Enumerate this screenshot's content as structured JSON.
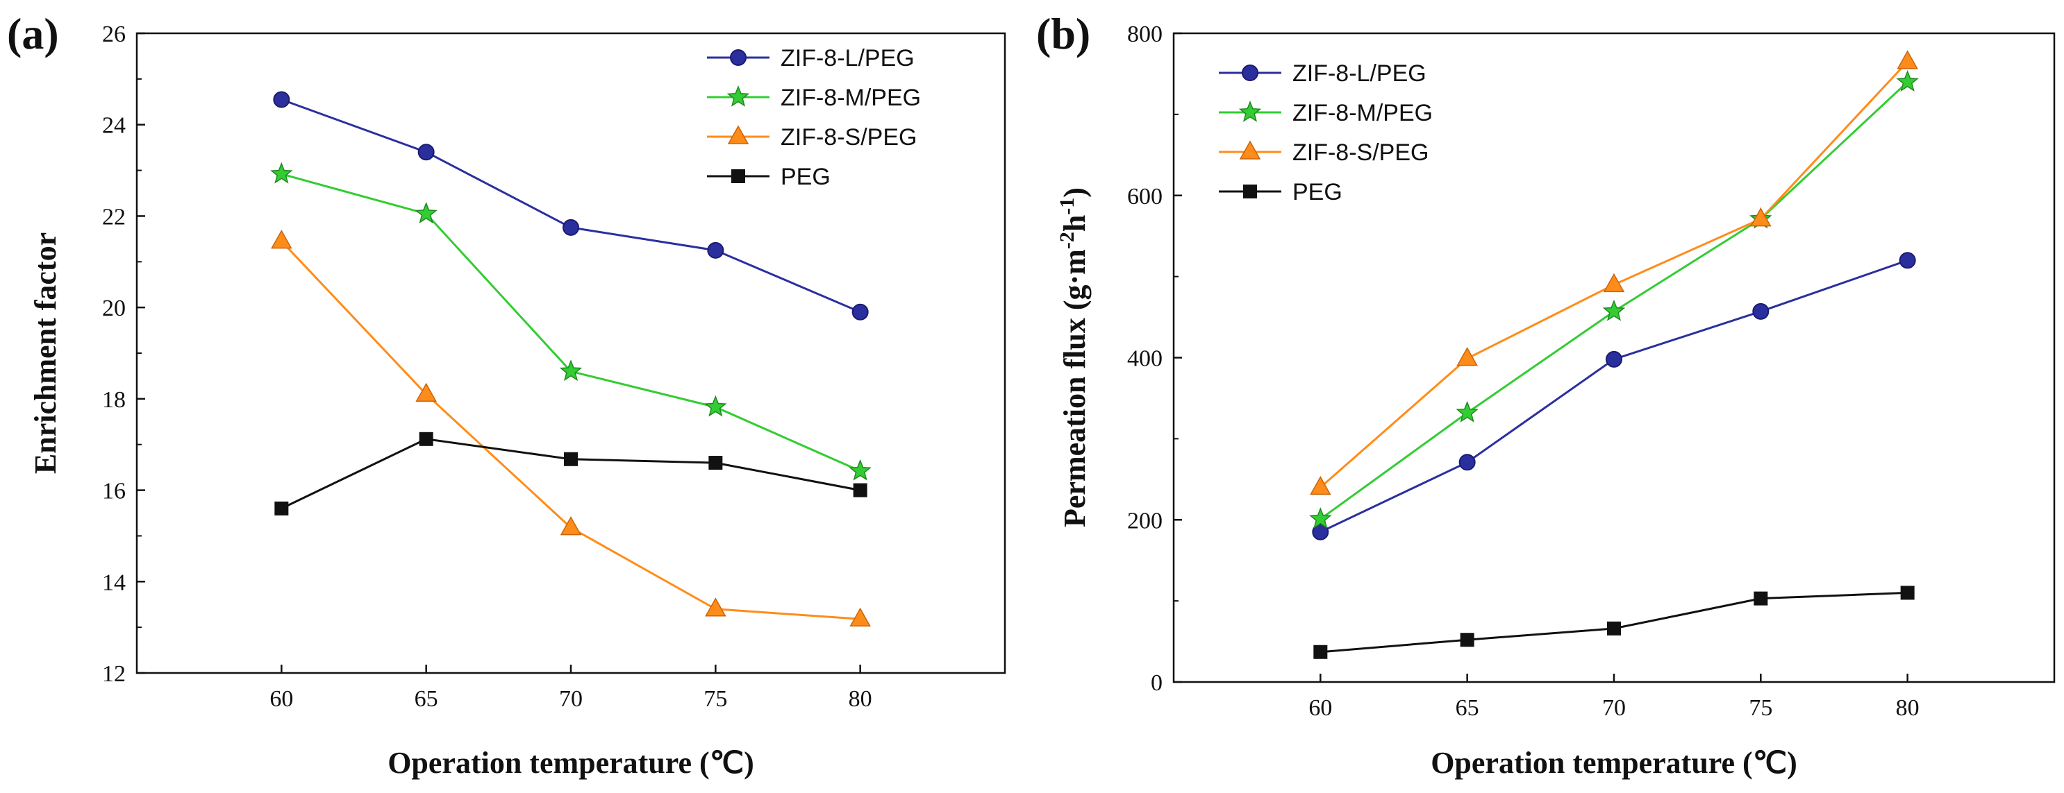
{
  "chart_data": [
    {
      "type": "line",
      "panel_label": "(a)",
      "xlabel": "Operation temperature (℃)",
      "ylabel": "Enrichment factor",
      "x": [
        60,
        65,
        70,
        75,
        80
      ],
      "xlim": [
        55,
        85
      ],
      "ylim": [
        12,
        26
      ],
      "xticks": [
        60,
        65,
        70,
        75,
        80
      ],
      "yticks": [
        12,
        14,
        16,
        18,
        20,
        22,
        24,
        26
      ],
      "legend_position": "top-right",
      "series": [
        {
          "name": "ZIF-8-L/PEG",
          "color": "#2b2f9e",
          "marker": "circle",
          "values": [
            24.55,
            23.4,
            21.75,
            21.25,
            19.9
          ]
        },
        {
          "name": "ZIF-8-M/PEG",
          "color": "#33cc33",
          "marker": "star",
          "values": [
            22.92,
            22.05,
            18.6,
            17.82,
            16.42
          ]
        },
        {
          "name": "ZIF-8-S/PEG",
          "color": "#ff8c1a",
          "marker": "triangle",
          "values": [
            21.45,
            18.1,
            15.18,
            13.4,
            13.18
          ]
        },
        {
          "name": "PEG",
          "color": "#111111",
          "marker": "square",
          "values": [
            15.6,
            17.12,
            16.68,
            16.6,
            16.0
          ]
        }
      ]
    },
    {
      "type": "line",
      "panel_label": "(b)",
      "xlabel": "Operation temperature (℃)",
      "ylabel": "Permeation flux (g·m⁻²h⁻¹)",
      "ylabel_parts": {
        "main": "Permeation flux (g·m",
        "sup1": "-2",
        "mid": "h",
        "sup2": "-1",
        "end": ")"
      },
      "x": [
        60,
        65,
        70,
        75,
        80
      ],
      "xlim": [
        55,
        85
      ],
      "ylim": [
        0,
        800
      ],
      "xticks": [
        60,
        65,
        70,
        75,
        80
      ],
      "yticks": [
        0,
        200,
        400,
        600,
        800
      ],
      "legend_position": "top-left",
      "series": [
        {
          "name": "ZIF-8-L/PEG",
          "color": "#2b2f9e",
          "marker": "circle",
          "values": [
            185,
            271,
            398,
            457,
            520
          ]
        },
        {
          "name": "ZIF-8-M/PEG",
          "color": "#33cc33",
          "marker": "star",
          "values": [
            201,
            332,
            457,
            571,
            740
          ]
        },
        {
          "name": "ZIF-8-S/PEG",
          "color": "#ff8c1a",
          "marker": "triangle",
          "values": [
            240,
            399,
            490,
            571,
            765
          ]
        },
        {
          "name": "PEG",
          "color": "#111111",
          "marker": "square",
          "values": [
            37,
            52,
            66,
            103,
            110
          ]
        }
      ]
    }
  ]
}
